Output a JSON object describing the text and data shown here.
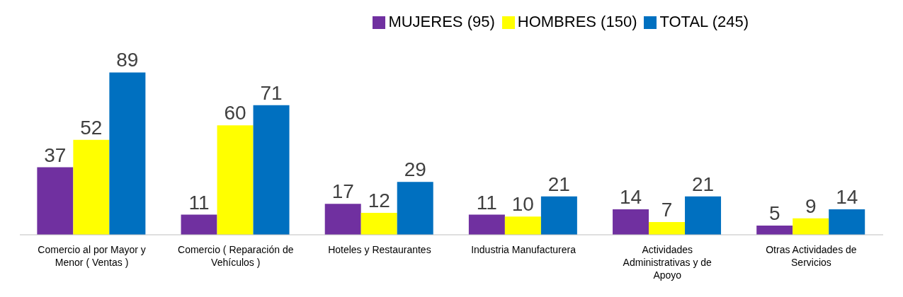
{
  "chart_data": {
    "type": "bar",
    "categories": [
      "Comercio al por Mayor y Menor  ( Ventas )",
      "Comercio ( Reparación de Vehículos )",
      "Hoteles y Restaurantes",
      "Industria Manufacturera",
      "Actividades Administrativas y de Apoyo",
      "Otras Actividades de Servicios"
    ],
    "series": [
      {
        "name": "MUJERES (95)",
        "color": "#7030a0",
        "values": [
          37,
          11,
          17,
          11,
          14,
          5
        ]
      },
      {
        "name": "HOMBRES (150)",
        "color": "#ffff00",
        "values": [
          52,
          60,
          12,
          10,
          7,
          9
        ]
      },
      {
        "name": "TOTAL (245)",
        "color": "#0070c0",
        "values": [
          89,
          71,
          29,
          21,
          21,
          14
        ]
      }
    ],
    "data_labels": true,
    "legend": "top right",
    "grid": false
  }
}
